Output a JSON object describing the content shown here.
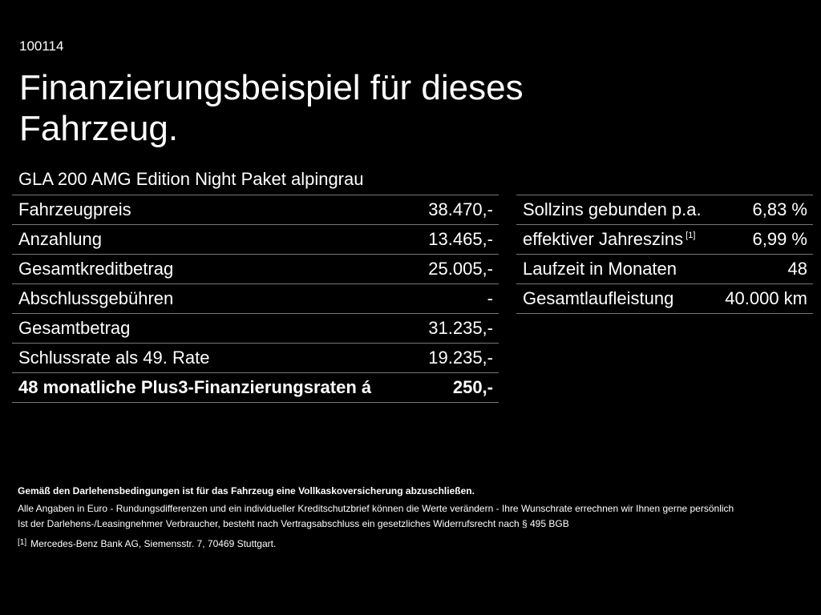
{
  "slide": {
    "id": "100114",
    "title": "Finanzierungsbeispiel für dieses Fahrzeug.",
    "vehicle": "GLA 200 AMG Edition Night Paket alpingrau"
  },
  "financing": {
    "rows": [
      {
        "label": "Fahrzeugpreis",
        "value": "38.470,-"
      },
      {
        "label": "Anzahlung",
        "value": "13.465,-"
      },
      {
        "label": "Gesamtkreditbetrag",
        "value": "25.005,-"
      },
      {
        "label": "Abschlussgebühren",
        "value": "-"
      },
      {
        "label": "Gesamtbetrag",
        "value": "31.235,-"
      },
      {
        "label": "Schlussrate als 49. Rate",
        "value": "19.235,-"
      },
      {
        "label": "48 monatliche Plus3-Finanzierungsraten á",
        "value": "250,-"
      }
    ]
  },
  "terms": {
    "rows": [
      {
        "label": "Sollzins gebunden p.a.",
        "value": "6,83 %"
      },
      {
        "label": "effektiver Jahreszins",
        "footnote": "[1]",
        "value": "6,99 %"
      },
      {
        "label": "Laufzeit in Monaten",
        "value": "48"
      },
      {
        "label": "Gesamtlaufleistung",
        "value": "40.000 km"
      }
    ]
  },
  "footer": {
    "insurance_note": "Gemäß den Darlehensbedingungen ist für das Fahrzeug eine Vollkaskoversicherung abzuschließen.",
    "currency_note": "Alle Angaben in Euro - Rundungsdifferenzen und ein individueller Kreditschutzbrief können die Werte verändern - Ihre Wunschrate errechnen wir Ihnen gerne persönlich",
    "withdrawal_note": "Ist der Darlehens-/Leasingnehmer Verbraucher, besteht nach Vertragsabschluss ein gesetzliches Widerrufsrecht nach § 495 BGB",
    "footnote_marker": "[1]",
    "footnote_text": "Mercedes-Benz Bank AG, Siemensstr. 7, 70469 Stuttgart."
  }
}
